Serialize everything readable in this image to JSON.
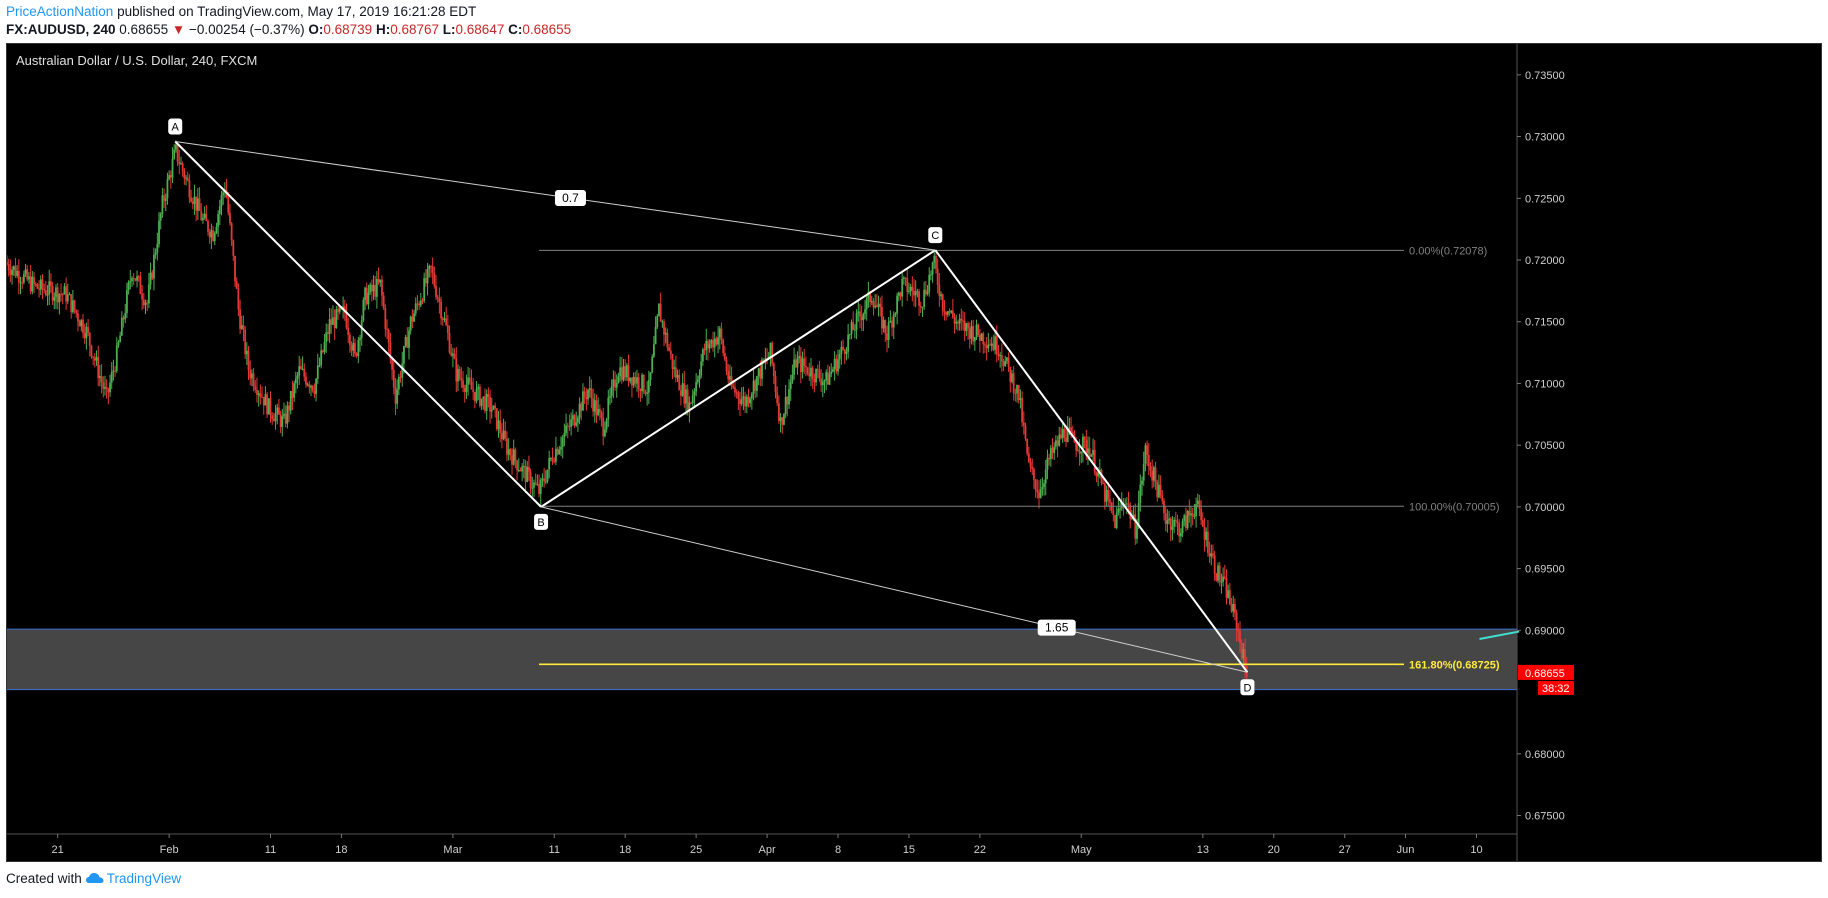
{
  "header": {
    "publisher": "PriceActionNation",
    "published_text": "published on TradingView.com, May 17, 2019 16:21:28 EDT",
    "symbol": "FX:AUDUSD, 240",
    "last": "0.68655",
    "change_arrow": "▼",
    "change": "−0.00254 (−0.37%)",
    "o_label": "O:",
    "o_value": "0.68739",
    "h_label": "H:",
    "h_value": "0.68767",
    "l_label": "L:",
    "l_value": "0.68647",
    "c_label": "C:",
    "c_value": "0.68655"
  },
  "footer": {
    "created_with": "Created with",
    "brand": "TradingView"
  },
  "chart_data": {
    "type": "candlestick",
    "title": "Australian Dollar / U.S. Dollar, 240, FXCM",
    "y_range": [
      0.6735,
      0.7375
    ],
    "y_ticks": [
      "0.73500",
      "0.73000",
      "0.72500",
      "0.72000",
      "0.71500",
      "0.71000",
      "0.70500",
      "0.70000",
      "0.69500",
      "0.69000",
      "0.68000",
      "0.67500"
    ],
    "x_ticks": [
      {
        "label": "21",
        "day": 0
      },
      {
        "label": "Feb",
        "day": 11
      },
      {
        "label": "11",
        "day": 21
      },
      {
        "label": "18",
        "day": 28
      },
      {
        "label": "Mar",
        "day": 39
      },
      {
        "label": "11",
        "day": 49
      },
      {
        "label": "18",
        "day": 56
      },
      {
        "label": "25",
        "day": 63
      },
      {
        "label": "Apr",
        "day": 70
      },
      {
        "label": "8",
        "day": 77
      },
      {
        "label": "15",
        "day": 84
      },
      {
        "label": "22",
        "day": 91
      },
      {
        "label": "May",
        "day": 101
      },
      {
        "label": "13",
        "day": 113
      },
      {
        "label": "20",
        "day": 120
      },
      {
        "label": "27",
        "day": 127
      },
      {
        "label": "Jun",
        "day": 133
      },
      {
        "label": "10",
        "day": 140
      }
    ],
    "x_range_days": [
      -5,
      144
    ],
    "pattern": {
      "name": "ABCD",
      "points": [
        {
          "label": "A",
          "day": 11.6,
          "price": 0.7296
        },
        {
          "label": "B",
          "day": 47.7,
          "price": 0.7
        },
        {
          "label": "C",
          "day": 86.6,
          "price": 0.7208
        },
        {
          "label": "D",
          "day": 117.4,
          "price": 0.6866
        }
      ],
      "ratios": [
        {
          "label": "0.7",
          "from": "A",
          "to": "C",
          "t": 0.52
        },
        {
          "label": "1.65",
          "from": "B",
          "to": "D",
          "t": 0.73
        }
      ]
    },
    "fib_levels": [
      {
        "label": "0.00%(0.72078)",
        "price": 0.72078,
        "start_day": 47.5,
        "color": "#808080"
      },
      {
        "label": "100.00%(0.70005)",
        "price": 0.70005,
        "start_day": 47.5,
        "color": "#808080"
      },
      {
        "label": "161.80%(0.68725)",
        "price": 0.68725,
        "start_day": 47.5,
        "color": "#ffeb3b"
      }
    ],
    "zone": {
      "top": 0.6901,
      "bottom": 0.6852,
      "color": "#4a4a4a",
      "border": "#3d6fd0"
    },
    "last_price": {
      "value": "0.68655",
      "countdown": "38:32",
      "color": "#ff0000"
    },
    "trend_segment": {
      "start_day": 140.3,
      "start_price": 0.6893,
      "end_day": 144.2,
      "end_price": 0.6899,
      "color": "#40e0d0"
    },
    "path": [
      {
        "day": -5,
        "price": 0.7198
      },
      {
        "day": -2,
        "price": 0.7178
      },
      {
        "day": 1,
        "price": 0.7172
      },
      {
        "day": 3,
        "price": 0.7142
      },
      {
        "day": 5,
        "price": 0.7088
      },
      {
        "day": 6,
        "price": 0.7123
      },
      {
        "day": 7.5,
        "price": 0.7192
      },
      {
        "day": 9,
        "price": 0.7165
      },
      {
        "day": 10.5,
        "price": 0.7245
      },
      {
        "day": 11.8,
        "price": 0.7288
      },
      {
        "day": 13,
        "price": 0.7262
      },
      {
        "day": 14.5,
        "price": 0.7232
      },
      {
        "day": 15.5,
        "price": 0.7222
      },
      {
        "day": 16.7,
        "price": 0.7262
      },
      {
        "day": 18,
        "price": 0.716
      },
      {
        "day": 19,
        "price": 0.7112
      },
      {
        "day": 21,
        "price": 0.708
      },
      {
        "day": 22.5,
        "price": 0.7068
      },
      {
        "day": 24,
        "price": 0.711
      },
      {
        "day": 25.5,
        "price": 0.7098
      },
      {
        "day": 27,
        "price": 0.7148
      },
      {
        "day": 28.5,
        "price": 0.7158
      },
      {
        "day": 29.5,
        "price": 0.712
      },
      {
        "day": 30.5,
        "price": 0.717
      },
      {
        "day": 32,
        "price": 0.718
      },
      {
        "day": 33.5,
        "price": 0.709
      },
      {
        "day": 35,
        "price": 0.715
      },
      {
        "day": 37,
        "price": 0.7192
      },
      {
        "day": 38.5,
        "price": 0.7145
      },
      {
        "day": 39.5,
        "price": 0.7108
      },
      {
        "day": 41,
        "price": 0.7095
      },
      {
        "day": 43,
        "price": 0.708
      },
      {
        "day": 44.5,
        "price": 0.7048
      },
      {
        "day": 46,
        "price": 0.703
      },
      {
        "day": 47.7,
        "price": 0.7012
      },
      {
        "day": 49,
        "price": 0.7042
      },
      {
        "day": 51,
        "price": 0.707
      },
      {
        "day": 52.5,
        "price": 0.7095
      },
      {
        "day": 54,
        "price": 0.7065
      },
      {
        "day": 55.5,
        "price": 0.7112
      },
      {
        "day": 57,
        "price": 0.7105
      },
      {
        "day": 58.5,
        "price": 0.7095
      },
      {
        "day": 59.5,
        "price": 0.716
      },
      {
        "day": 61,
        "price": 0.711
      },
      {
        "day": 62.5,
        "price": 0.7082
      },
      {
        "day": 64,
        "price": 0.7128
      },
      {
        "day": 65.5,
        "price": 0.714
      },
      {
        "day": 66.5,
        "price": 0.7098
      },
      {
        "day": 68,
        "price": 0.7085
      },
      {
        "day": 69.5,
        "price": 0.711
      },
      {
        "day": 70.5,
        "price": 0.7125
      },
      {
        "day": 71.5,
        "price": 0.7068
      },
      {
        "day": 73,
        "price": 0.7118
      },
      {
        "day": 74.5,
        "price": 0.711
      },
      {
        "day": 76,
        "price": 0.7102
      },
      {
        "day": 77.5,
        "price": 0.7125
      },
      {
        "day": 79,
        "price": 0.715
      },
      {
        "day": 80.5,
        "price": 0.7172
      },
      {
        "day": 82,
        "price": 0.714
      },
      {
        "day": 83.5,
        "price": 0.718
      },
      {
        "day": 84.5,
        "price": 0.7175
      },
      {
        "day": 85.5,
        "price": 0.7168
      },
      {
        "day": 86.6,
        "price": 0.7198
      },
      {
        "day": 87.5,
        "price": 0.7165
      },
      {
        "day": 89,
        "price": 0.7148
      },
      {
        "day": 91,
        "price": 0.714
      },
      {
        "day": 93,
        "price": 0.713
      },
      {
        "day": 95,
        "price": 0.709
      },
      {
        "day": 96,
        "price": 0.7032
      },
      {
        "day": 97,
        "price": 0.7012
      },
      {
        "day": 98,
        "price": 0.7038
      },
      {
        "day": 99.5,
        "price": 0.7062
      },
      {
        "day": 100.5,
        "price": 0.7052
      },
      {
        "day": 102,
        "price": 0.7048
      },
      {
        "day": 103.5,
        "price": 0.701
      },
      {
        "day": 104.5,
        "price": 0.6988
      },
      {
        "day": 105.5,
        "price": 0.7008
      },
      {
        "day": 106.5,
        "price": 0.6982
      },
      {
        "day": 107.5,
        "price": 0.7045
      },
      {
        "day": 108.5,
        "price": 0.702
      },
      {
        "day": 109.5,
        "price": 0.6992
      },
      {
        "day": 111,
        "price": 0.6982
      },
      {
        "day": 112.5,
        "price": 0.7002
      },
      {
        "day": 113.5,
        "price": 0.6975
      },
      {
        "day": 114.5,
        "price": 0.6948
      },
      {
        "day": 115.5,
        "price": 0.6932
      },
      {
        "day": 116.5,
        "price": 0.6905
      },
      {
        "day": 117.4,
        "price": 0.6868
      }
    ]
  }
}
